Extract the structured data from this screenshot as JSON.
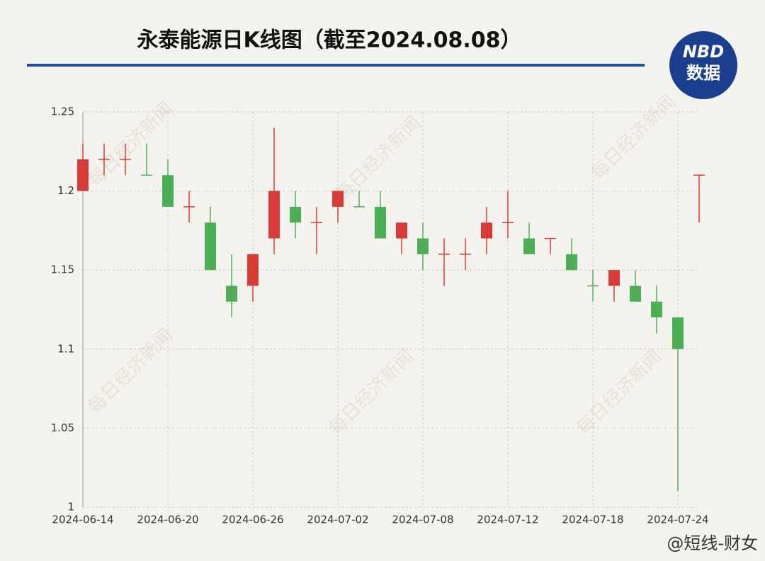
{
  "chart_data": {
    "type": "candlestick",
    "title": "永泰能源日K线图（截至2024.08.08）",
    "categories": [
      "2024-06-14",
      null,
      null,
      null,
      "2024-06-20",
      null,
      null,
      null,
      "2024-06-26",
      null,
      null,
      null,
      "2024-07-02",
      null,
      null,
      null,
      "2024-07-08",
      null,
      null,
      null,
      "2024-07-12",
      null,
      null,
      null,
      "2024-07-18",
      null,
      null,
      null,
      "2024-07-24",
      null
    ],
    "open": [
      1.2,
      1.22,
      1.22,
      1.21,
      1.21,
      1.19,
      1.18,
      1.14,
      1.14,
      1.17,
      1.19,
      1.18,
      1.19,
      1.19,
      1.19,
      1.17,
      1.17,
      1.16,
      1.16,
      1.17,
      1.18,
      1.17,
      1.17,
      1.16,
      1.14,
      1.14,
      1.14,
      1.13,
      1.12,
      1.21
    ],
    "high": [
      1.23,
      1.23,
      1.23,
      1.23,
      1.22,
      1.2,
      1.19,
      1.16,
      1.16,
      1.24,
      1.2,
      1.19,
      1.2,
      1.2,
      1.2,
      1.18,
      1.18,
      1.17,
      1.17,
      1.19,
      1.2,
      1.18,
      1.17,
      1.17,
      1.15,
      1.15,
      1.15,
      1.14,
      1.12,
      1.21
    ],
    "low": [
      1.2,
      1.21,
      1.21,
      1.21,
      1.19,
      1.18,
      1.15,
      1.12,
      1.13,
      1.16,
      1.17,
      1.16,
      1.18,
      1.19,
      1.17,
      1.16,
      1.15,
      1.14,
      1.15,
      1.16,
      1.17,
      1.16,
      1.16,
      1.15,
      1.13,
      1.13,
      1.13,
      1.11,
      1.01,
      1.18
    ],
    "close": [
      1.22,
      1.22,
      1.22,
      1.21,
      1.19,
      1.19,
      1.15,
      1.13,
      1.16,
      1.2,
      1.18,
      1.18,
      1.2,
      1.19,
      1.17,
      1.18,
      1.16,
      1.16,
      1.16,
      1.18,
      1.18,
      1.16,
      1.17,
      1.15,
      1.14,
      1.15,
      1.13,
      1.12,
      1.1,
      1.21
    ],
    "up_color": "#d93a35",
    "down_color": "#4caf55",
    "ylim": [
      1,
      1.25
    ],
    "yticks": [
      1,
      1.05,
      1.1,
      1.15,
      1.2,
      1.25
    ],
    "grid": true
  },
  "logo": {
    "top": "NBD",
    "bottom": "数据"
  },
  "watermark": "每日经济新闻",
  "credit": "@短线-财女"
}
